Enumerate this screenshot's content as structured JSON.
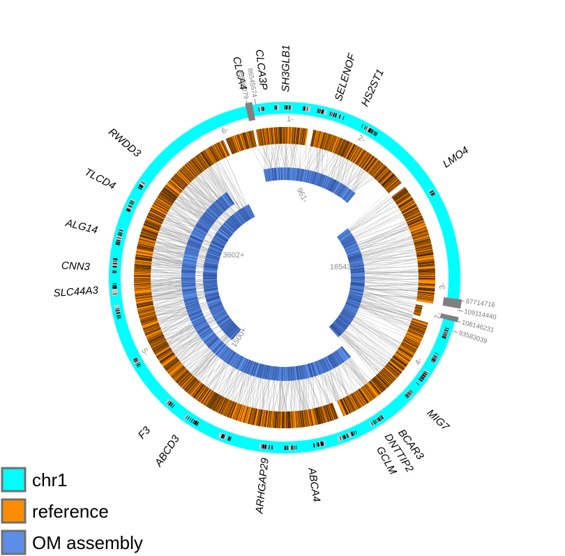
{
  "colors": {
    "chr1": "#00ffff",
    "reference": "#ff8c00",
    "om_assembly": "#5b8ee6",
    "link": "#9a9a9a",
    "marker": "#c8c8c8",
    "boundary": "#808080",
    "legend_border": "#707070"
  },
  "legend": {
    "items": [
      {
        "label": "chr1",
        "color": "#00ffff"
      },
      {
        "label": "reference",
        "color": "#ff8c00"
      },
      {
        "label": "OM assembly",
        "color": "#5b8ee6"
      }
    ]
  },
  "genes": [
    {
      "name": "CLCA4",
      "angle": -12.5
    },
    {
      "name": "CLCA3P",
      "angle": -6.5
    },
    {
      "name": "SH3GLB1",
      "angle": 0.5
    },
    {
      "name": "SELENOF",
      "angle": 17
    },
    {
      "name": "HS2ST1",
      "angle": 25
    },
    {
      "name": "LMO4",
      "angle": 55
    },
    {
      "name": "MIG7",
      "angle": 133
    },
    {
      "name": "BCAR3",
      "angle": 143
    },
    {
      "name": "DNTTIP2",
      "angle": 147
    },
    {
      "name": "GCLM",
      "angle": 151
    },
    {
      "name": "ABCA4",
      "angle": 172
    },
    {
      "name": "ARHGAP29",
      "angle": 186
    },
    {
      "name": "ABCD3",
      "angle": 214
    },
    {
      "name": "F3",
      "angle": 222
    },
    {
      "name": "SLC44A3",
      "angle": 266
    },
    {
      "name": "CNN3",
      "angle": 273
    },
    {
      "name": "ALG14",
      "angle": 284
    },
    {
      "name": "TLCD4",
      "angle": 298
    },
    {
      "name": "RWDD3",
      "angle": 310
    }
  ],
  "reference_fragments": [
    {
      "label": "1-",
      "start": 349,
      "end": 9
    },
    {
      "label": "2-",
      "start": 11,
      "end": 51
    },
    {
      "label": "3-",
      "start": 53,
      "end": 100
    },
    {
      "label": "7-",
      "start": 101.5,
      "end": 106
    },
    {
      "label": "4-",
      "start": 107.5,
      "end": 157
    },
    {
      "label": "5-",
      "start": 159,
      "end": 336
    },
    {
      "label": "6-",
      "start": 337,
      "end": 348
    }
  ],
  "om_contigs": [
    {
      "label": "961-",
      "start": 349,
      "end": 40
    },
    {
      "label": "16543-",
      "start": 52,
      "end": 138
    },
    {
      "label": "1500+",
      "start": 140,
      "end": 326
    },
    {
      "label": "3602+",
      "start": 220,
      "end": 334
    }
  ],
  "coordinates": [
    {
      "text": "86545574",
      "angle": -9.5
    },
    {
      "text": "95589279",
      "angle": -12.2
    },
    {
      "text": "87714716",
      "angle": 97.5
    },
    {
      "text": "109114440",
      "angle": 100.7
    },
    {
      "text": "108146231",
      "angle": 104.2
    },
    {
      "text": "93583039",
      "angle": 107.6
    }
  ]
}
